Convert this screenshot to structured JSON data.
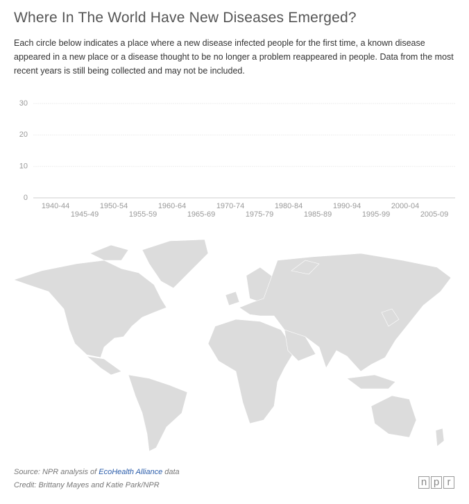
{
  "chart_data": {
    "type": "bar",
    "title": "Where In The World Have New Diseases Emerged?",
    "subtitle": "Each circle below indicates a place where a new disease infected people for the first time, a known disease appeared in a new place or a disease thought to be no longer a problem reappeared in people. Data from the most recent years is still being collected and may not be included.",
    "categories": [
      "1940-44",
      "1945-49",
      "1950-54",
      "1955-59",
      "1960-64",
      "1965-69",
      "1970-74",
      "1975-79",
      "1980-84",
      "1985-89",
      "1990-94",
      "1995-99",
      "2000-04",
      "2005-09"
    ],
    "ylim": [
      0,
      30
    ],
    "yticks": [
      0,
      10,
      20,
      30
    ],
    "grid": true,
    "color": "#c0392b"
  },
  "footer": {
    "source_prefix": "Source: NPR analysis of",
    "source_link": "EcoHealth Alliance",
    "source_suffix": "data",
    "credit": "Credit: Brittany Mayes and Katie Park/NPR",
    "logo": [
      "n",
      "p",
      "r"
    ]
  }
}
